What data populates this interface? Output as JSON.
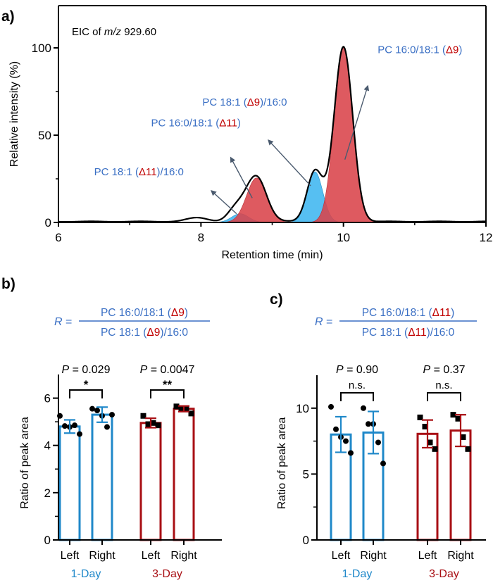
{
  "colors": {
    "blue_text": "#3a6fc4",
    "red_text": "#c00000",
    "peak_red": "#d9434a",
    "peak_blue": "#3fb6f0",
    "bar_blue": "#1f88c9",
    "bar_red": "#a80f14",
    "axis": "#000000",
    "arrow": "#4a5a6e"
  },
  "chart_data": [
    {
      "panel": "a)",
      "type": "line",
      "title": "EIC of m/z 929.60",
      "title_parts": [
        "EIC of ",
        "m/z",
        " 929.60"
      ],
      "xlabel": "Retention time (min)",
      "ylabel": "Relative intensity (%)",
      "xlim": [
        6,
        12
      ],
      "ylim": [
        0,
        120
      ],
      "xticks": [
        6,
        8,
        10,
        12
      ],
      "xminor": [
        7,
        9,
        11
      ],
      "yticks": [
        0,
        50,
        100
      ],
      "yminor": [
        25,
        75
      ],
      "grid": false,
      "peaks": [
        {
          "name": "PC 18:1 (Δ11)/16:0",
          "center": 8.55,
          "height": 5,
          "width": 0.12,
          "fill": "blue"
        },
        {
          "name": "PC 16:0/18:1 (Δ11)",
          "center": 8.78,
          "height": 25.5,
          "width": 0.14,
          "fill": "red"
        },
        {
          "name": "PC 18:1 (Δ9)/16:0",
          "center": 9.6,
          "height": 29,
          "width": 0.11,
          "fill": "blue"
        },
        {
          "name": "PC 16:0/18:1 (Δ9)",
          "center": 10.0,
          "height": 100,
          "width": 0.13,
          "fill": "red"
        }
      ],
      "minor_features": [
        {
          "center": 7.95,
          "height": 2.2,
          "width": 0.15
        },
        {
          "center": 8.45,
          "height": 3.5,
          "width": 0.1
        }
      ],
      "annotations": [
        {
          "parts": [
            [
              "PC 16:0/18:1 (",
              "b"
            ],
            [
              "Δ9",
              "r"
            ],
            [
              ")",
              "b"
            ]
          ],
          "label_x": 10.48,
          "label_y": 97,
          "arrow_from": [
            10.02,
            36
          ],
          "arrow_to": [
            10.34,
            78
          ]
        },
        {
          "parts": [
            [
              "PC 18:1 (",
              "b"
            ],
            [
              "Δ9",
              "r"
            ],
            [
              ")/16:0",
              "b"
            ]
          ],
          "label_x": 8.02,
          "label_y": 67,
          "arrow_from": [
            9.54,
            21
          ],
          "arrow_to": [
            8.95,
            47
          ]
        },
        {
          "parts": [
            [
              "PC 16:0/18:1 (",
              "b"
            ],
            [
              "Δ11",
              "r"
            ],
            [
              ")",
              "b"
            ]
          ],
          "label_x": 7.3,
          "label_y": 55,
          "arrow_from": [
            8.72,
            14
          ],
          "arrow_to": [
            8.42,
            37
          ]
        },
        {
          "parts": [
            [
              "PC 18:1 (",
              "b"
            ],
            [
              "Δ11",
              "r"
            ],
            [
              ")/16:0",
              "b"
            ]
          ],
          "label_x": 6.5,
          "label_y": 27,
          "arrow_from": [
            8.5,
            5
          ],
          "arrow_to": [
            8.15,
            18
          ]
        }
      ]
    },
    {
      "panel": "b)",
      "type": "bar",
      "formula": {
        "lhs": "R =",
        "numerator": [
          [
            "PC 16:0/18:1 (",
            "b"
          ],
          [
            "Δ9",
            "r"
          ],
          [
            ")",
            "b"
          ]
        ],
        "denominator": [
          [
            "PC 18:1 (",
            "b"
          ],
          [
            "Δ9",
            "r"
          ],
          [
            ")/16:0",
            "b"
          ]
        ]
      },
      "ylabel": "Ratio of peak area",
      "ylim": [
        0,
        7
      ],
      "yticks": [
        0,
        2,
        4,
        6
      ],
      "yminor": [
        1,
        3,
        5
      ],
      "categories": [
        "Left",
        "Right",
        "Left",
        "Right"
      ],
      "groups": [
        {
          "name": "1-Day",
          "color": "blue",
          "marker": "circle",
          "bars": [
            {
              "label": "Left",
              "mean": 4.8,
              "sd": 0.28,
              "points": [
                5.25,
                4.82,
                4.78,
                4.85,
                4.48
              ]
            },
            {
              "label": "Right",
              "mean": 5.3,
              "sd": 0.32,
              "points": [
                5.55,
                5.48,
                5.25,
                4.78,
                5.3
              ]
            }
          ],
          "p_value": "0.029",
          "significance": "*"
        },
        {
          "name": "3-Day",
          "color": "red",
          "marker": "square",
          "bars": [
            {
              "label": "Left",
              "mean": 4.95,
              "sd": 0.2,
              "points": [
                5.25,
                4.9,
                4.95,
                4.85
              ]
            },
            {
              "label": "Right",
              "mean": 5.55,
              "sd": 0.12,
              "points": [
                5.65,
                5.55,
                5.55,
                5.35
              ]
            }
          ],
          "p_value": "0.0047",
          "significance": "**"
        }
      ]
    },
    {
      "panel": "c)",
      "type": "bar",
      "formula": {
        "lhs": "R =",
        "numerator": [
          [
            "PC 16:0/18:1 (",
            "b"
          ],
          [
            "Δ11",
            "r"
          ],
          [
            ")",
            "b"
          ]
        ],
        "denominator": [
          [
            "PC 18:1 (",
            "b"
          ],
          [
            "Δ11",
            "r"
          ],
          [
            ")/16:0",
            "b"
          ]
        ]
      },
      "ylabel": "Ratio of peak area",
      "ylim": [
        0,
        12.5
      ],
      "yticks": [
        0,
        5,
        10
      ],
      "yminor": [
        2.5,
        7.5
      ],
      "categories": [
        "Left",
        "Right",
        "Left",
        "Right"
      ],
      "groups": [
        {
          "name": "1-Day",
          "color": "blue",
          "marker": "circle",
          "bars": [
            {
              "label": "Left",
              "mean": 8.0,
              "sd": 1.35,
              "points": [
                10.1,
                8.4,
                7.8,
                7.5,
                6.6
              ]
            },
            {
              "label": "Right",
              "mean": 8.15,
              "sd": 1.6,
              "points": [
                10.0,
                8.8,
                8.8,
                7.4,
                5.8
              ]
            }
          ],
          "p_value": "0.90",
          "significance": "n.s."
        },
        {
          "name": "3-Day",
          "color": "red",
          "marker": "square",
          "bars": [
            {
              "label": "Left",
              "mean": 8.05,
              "sd": 1.05,
              "points": [
                9.3,
                8.6,
                7.4,
                6.9
              ]
            },
            {
              "label": "Right",
              "mean": 8.3,
              "sd": 1.2,
              "points": [
                9.5,
                9.2,
                7.8,
                6.9
              ]
            }
          ],
          "p_value": "0.37",
          "significance": "n.s."
        }
      ]
    }
  ]
}
